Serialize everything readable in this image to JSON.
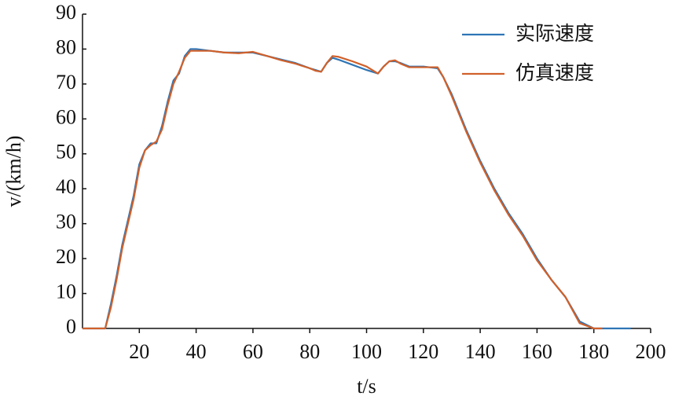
{
  "chart_data": {
    "type": "line",
    "xlabel": "t/s",
    "ylabel": "v/(km/h)",
    "xlim": [
      0,
      200
    ],
    "ylim": [
      0,
      90
    ],
    "xticks": [
      20,
      40,
      60,
      80,
      100,
      120,
      140,
      160,
      180,
      200
    ],
    "yticks": [
      0,
      10,
      20,
      30,
      40,
      50,
      60,
      70,
      80,
      90
    ],
    "legend": "upper right",
    "x": [
      0,
      8,
      10,
      12,
      14,
      16,
      18,
      20,
      22,
      24,
      26,
      28,
      30,
      32,
      34,
      36,
      38,
      40,
      45,
      50,
      55,
      60,
      65,
      70,
      75,
      80,
      82,
      84,
      86,
      88,
      90,
      95,
      100,
      104,
      106,
      108,
      110,
      112,
      115,
      120,
      125,
      127,
      130,
      135,
      140,
      145,
      150,
      155,
      160,
      165,
      170,
      175,
      180,
      183,
      185,
      186,
      187,
      190,
      193
    ],
    "series": [
      {
        "name": "实际速度",
        "color": "#2e75b6",
        "values": [
          0,
          0,
          7,
          15,
          24,
          31,
          38,
          47,
          51,
          53,
          53,
          58,
          65,
          71,
          73,
          78,
          80,
          80,
          79.5,
          79,
          79,
          79,
          78,
          77,
          76,
          74.5,
          74,
          73.5,
          76,
          77.5,
          77,
          75.5,
          74,
          73,
          75,
          76.5,
          76.5,
          76,
          75,
          75,
          74.5,
          72,
          67,
          57,
          48,
          40,
          33,
          27,
          20,
          14,
          9,
          2,
          0,
          0,
          0,
          0,
          0,
          0,
          0
        ]
      },
      {
        "name": "仿真速度",
        "color": "#d0602a",
        "values": [
          0,
          0,
          6,
          14,
          23,
          30,
          37,
          46,
          51,
          52.5,
          53.5,
          57,
          64,
          70,
          73.5,
          77.5,
          79.5,
          79.5,
          79.5,
          79,
          78.8,
          79.2,
          78,
          76.8,
          75.8,
          74.5,
          73.8,
          73.5,
          76,
          78,
          77.8,
          76.5,
          75,
          73,
          75,
          76.5,
          76.8,
          75.8,
          74.8,
          74.8,
          74.8,
          72,
          66.5,
          56.5,
          47.5,
          39.5,
          32.5,
          26.5,
          19.5,
          14,
          9,
          1.5,
          0,
          0,
          null,
          null,
          null,
          null,
          null
        ]
      }
    ]
  }
}
